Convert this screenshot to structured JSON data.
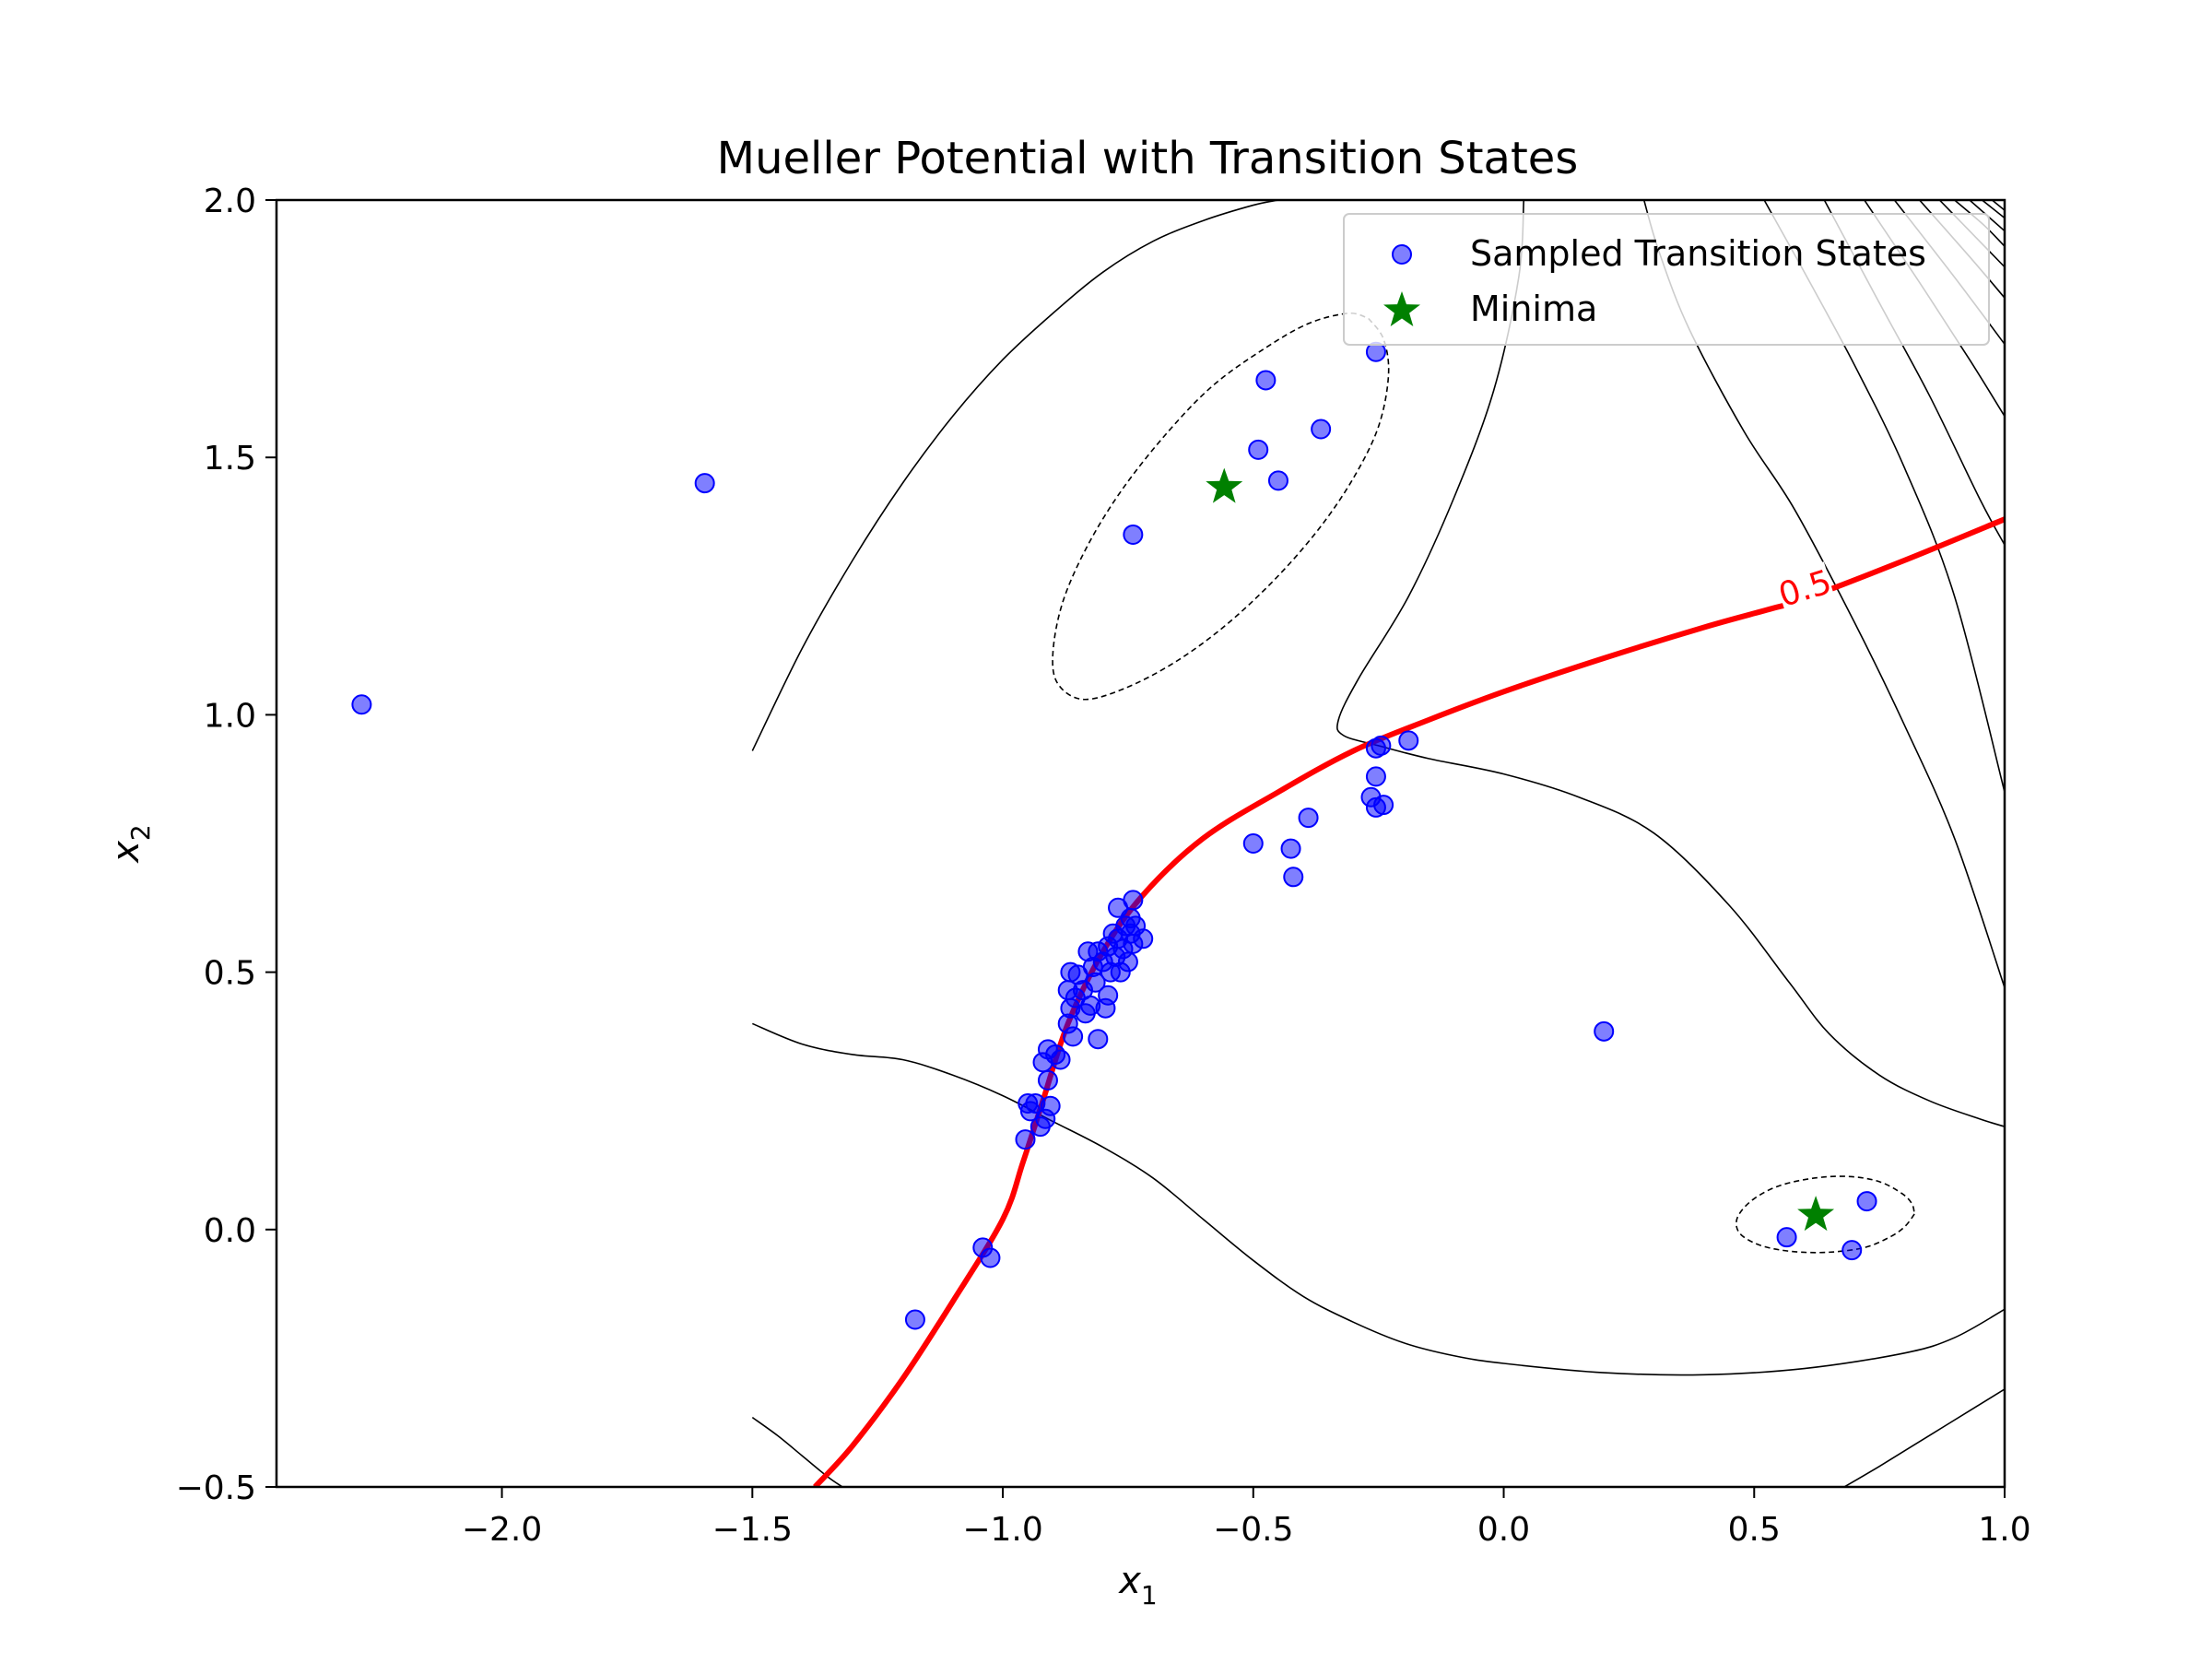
{
  "chart_data": {
    "type": "scatter",
    "title": "Mueller Potential with Transition States",
    "xlabel": "x",
    "xlabel_sub": "1",
    "ylabel": "x",
    "ylabel_sub": "2",
    "xlim": [
      -2.45,
      1.0
    ],
    "ylim": [
      -0.5,
      2.0
    ],
    "xticks": [
      -2.0,
      -1.5,
      -1.0,
      -0.5,
      0.0,
      0.5,
      1.0
    ],
    "xtick_labels": [
      "−2.0",
      "−1.5",
      "−1.0",
      "−0.5",
      "0.0",
      "0.5",
      "1.0"
    ],
    "yticks": [
      -0.5,
      0.0,
      0.5,
      1.0,
      1.5,
      2.0
    ],
    "ytick_labels": [
      "−0.5",
      "0.0",
      "0.5",
      "1.0",
      "1.5",
      "2.0"
    ],
    "legend_position": "upper right",
    "legend": [
      {
        "label": "Sampled Transition States",
        "marker": "circle",
        "color": "#0000ff"
      },
      {
        "label": "Minima",
        "marker": "star",
        "color": "#008000"
      }
    ],
    "contour_label": "0.5",
    "contour_label_color": "#ff0000",
    "colors": {
      "points": "#0000ff",
      "minima": "#008000",
      "committor": "#ff0000",
      "contours": "#000000"
    },
    "minima": [
      {
        "x": -0.558,
        "y": 1.442
      },
      {
        "x": 0.623,
        "y": 0.028
      }
    ],
    "transition_states": [
      {
        "x": -2.28,
        "y": 1.02
      },
      {
        "x": -1.595,
        "y": 1.45
      },
      {
        "x": -0.74,
        "y": 1.35
      },
      {
        "x": -0.49,
        "y": 1.515
      },
      {
        "x": -0.475,
        "y": 1.65
      },
      {
        "x": -0.45,
        "y": 1.455
      },
      {
        "x": -0.365,
        "y": 1.555
      },
      {
        "x": -0.255,
        "y": 1.705
      },
      {
        "x": -0.255,
        "y": 0.935
      },
      {
        "x": -0.245,
        "y": 0.94
      },
      {
        "x": -0.19,
        "y": 0.95
      },
      {
        "x": -0.255,
        "y": 0.88
      },
      {
        "x": -0.265,
        "y": 0.84
      },
      {
        "x": -0.24,
        "y": 0.825
      },
      {
        "x": -0.255,
        "y": 0.82
      },
      {
        "x": -0.39,
        "y": 0.8
      },
      {
        "x": -0.5,
        "y": 0.75
      },
      {
        "x": -0.425,
        "y": 0.74
      },
      {
        "x": -0.42,
        "y": 0.685
      },
      {
        "x": 0.2,
        "y": 0.385
      },
      {
        "x": 0.725,
        "y": 0.055
      },
      {
        "x": 0.565,
        "y": -0.015
      },
      {
        "x": 0.695,
        "y": -0.04
      },
      {
        "x": -1.04,
        "y": -0.035
      },
      {
        "x": -1.025,
        "y": -0.055
      },
      {
        "x": -1.175,
        "y": -0.175
      },
      {
        "x": -0.955,
        "y": 0.175
      },
      {
        "x": -0.95,
        "y": 0.245
      },
      {
        "x": -0.945,
        "y": 0.23
      },
      {
        "x": -0.935,
        "y": 0.245
      },
      {
        "x": -0.925,
        "y": 0.2
      },
      {
        "x": -0.915,
        "y": 0.215
      },
      {
        "x": -0.905,
        "y": 0.24
      },
      {
        "x": -0.91,
        "y": 0.29
      },
      {
        "x": -0.92,
        "y": 0.325
      },
      {
        "x": -0.91,
        "y": 0.35
      },
      {
        "x": -0.895,
        "y": 0.34
      },
      {
        "x": -0.885,
        "y": 0.33
      },
      {
        "x": -0.87,
        "y": 0.4
      },
      {
        "x": -0.86,
        "y": 0.375
      },
      {
        "x": -0.865,
        "y": 0.43
      },
      {
        "x": -0.87,
        "y": 0.465
      },
      {
        "x": -0.865,
        "y": 0.5
      },
      {
        "x": -0.855,
        "y": 0.45
      },
      {
        "x": -0.85,
        "y": 0.495
      },
      {
        "x": -0.84,
        "y": 0.465
      },
      {
        "x": -0.835,
        "y": 0.42
      },
      {
        "x": -0.83,
        "y": 0.54
      },
      {
        "x": -0.825,
        "y": 0.435
      },
      {
        "x": -0.82,
        "y": 0.51
      },
      {
        "x": -0.815,
        "y": 0.48
      },
      {
        "x": -0.81,
        "y": 0.54
      },
      {
        "x": -0.81,
        "y": 0.37
      },
      {
        "x": -0.8,
        "y": 0.52
      },
      {
        "x": -0.795,
        "y": 0.43
      },
      {
        "x": -0.79,
        "y": 0.455
      },
      {
        "x": -0.79,
        "y": 0.55
      },
      {
        "x": -0.785,
        "y": 0.5
      },
      {
        "x": -0.78,
        "y": 0.575
      },
      {
        "x": -0.775,
        "y": 0.53
      },
      {
        "x": -0.77,
        "y": 0.565
      },
      {
        "x": -0.77,
        "y": 0.625
      },
      {
        "x": -0.765,
        "y": 0.5
      },
      {
        "x": -0.76,
        "y": 0.545
      },
      {
        "x": -0.755,
        "y": 0.59
      },
      {
        "x": -0.75,
        "y": 0.52
      },
      {
        "x": -0.745,
        "y": 0.605
      },
      {
        "x": -0.745,
        "y": 0.575
      },
      {
        "x": -0.74,
        "y": 0.64
      },
      {
        "x": -0.74,
        "y": 0.555
      },
      {
        "x": -0.735,
        "y": 0.59
      },
      {
        "x": -0.72,
        "y": 0.565
      }
    ],
    "committor_curve": [
      {
        "x": -1.375,
        "y": -0.5
      },
      {
        "x": -1.3,
        "y": -0.42
      },
      {
        "x": -1.2,
        "y": -0.29
      },
      {
        "x": -1.1,
        "y": -0.14
      },
      {
        "x": -1.0,
        "y": 0.02
      },
      {
        "x": -0.96,
        "y": 0.13
      },
      {
        "x": -0.92,
        "y": 0.25
      },
      {
        "x": -0.87,
        "y": 0.4
      },
      {
        "x": -0.8,
        "y": 0.54
      },
      {
        "x": -0.72,
        "y": 0.65
      },
      {
        "x": -0.6,
        "y": 0.76
      },
      {
        "x": -0.45,
        "y": 0.85
      },
      {
        "x": -0.3,
        "y": 0.93
      },
      {
        "x": -0.15,
        "y": 0.99
      },
      {
        "x": 0.0,
        "y": 1.045
      },
      {
        "x": 0.2,
        "y": 1.11
      },
      {
        "x": 0.4,
        "y": 1.17
      },
      {
        "x": 0.53,
        "y": 1.205
      },
      {
        "x": 0.6,
        "y": 1.225
      },
      {
        "x": 0.8,
        "y": 1.3
      },
      {
        "x": 1.0,
        "y": 1.38
      }
    ],
    "dashed_contours": [
      [
        {
          "x": -0.27,
          "y": 1.77
        },
        {
          "x": -0.24,
          "y": 1.73
        },
        {
          "x": -0.23,
          "y": 1.66
        },
        {
          "x": -0.25,
          "y": 1.56
        },
        {
          "x": -0.3,
          "y": 1.46
        },
        {
          "x": -0.37,
          "y": 1.36
        },
        {
          "x": -0.46,
          "y": 1.26
        },
        {
          "x": -0.56,
          "y": 1.17
        },
        {
          "x": -0.66,
          "y": 1.1
        },
        {
          "x": -0.76,
          "y": 1.05
        },
        {
          "x": -0.84,
          "y": 1.03
        },
        {
          "x": -0.89,
          "y": 1.06
        },
        {
          "x": -0.9,
          "y": 1.12
        },
        {
          "x": -0.88,
          "y": 1.22
        },
        {
          "x": -0.83,
          "y": 1.33
        },
        {
          "x": -0.76,
          "y": 1.44
        },
        {
          "x": -0.67,
          "y": 1.55
        },
        {
          "x": -0.58,
          "y": 1.64
        },
        {
          "x": -0.48,
          "y": 1.71
        },
        {
          "x": -0.39,
          "y": 1.76
        },
        {
          "x": -0.31,
          "y": 1.78
        },
        {
          "x": -0.27,
          "y": 1.77
        }
      ],
      [
        {
          "x": 0.82,
          "y": 0.03
        },
        {
          "x": 0.8,
          "y": 0.005
        },
        {
          "x": 0.77,
          "y": -0.015
        },
        {
          "x": 0.72,
          "y": -0.035
        },
        {
          "x": 0.65,
          "y": -0.044
        },
        {
          "x": 0.58,
          "y": -0.043
        },
        {
          "x": 0.52,
          "y": -0.033
        },
        {
          "x": 0.48,
          "y": -0.015
        },
        {
          "x": 0.465,
          "y": 0.005
        },
        {
          "x": 0.47,
          "y": 0.03
        },
        {
          "x": 0.5,
          "y": 0.06
        },
        {
          "x": 0.55,
          "y": 0.085
        },
        {
          "x": 0.62,
          "y": 0.1
        },
        {
          "x": 0.69,
          "y": 0.103
        },
        {
          "x": 0.75,
          "y": 0.093
        },
        {
          "x": 0.795,
          "y": 0.07
        },
        {
          "x": 0.815,
          "y": 0.05
        },
        {
          "x": 0.82,
          "y": 0.03
        }
      ]
    ],
    "solid_contours": [
      [
        {
          "x": -1.5,
          "y": 0.93
        },
        {
          "x": -1.4,
          "y": 1.13
        },
        {
          "x": -1.3,
          "y": 1.3
        },
        {
          "x": -1.2,
          "y": 1.45
        },
        {
          "x": -1.1,
          "y": 1.58
        },
        {
          "x": -1.0,
          "y": 1.69
        },
        {
          "x": -0.9,
          "y": 1.78
        },
        {
          "x": -0.8,
          "y": 1.86
        },
        {
          "x": -0.7,
          "y": 1.92
        },
        {
          "x": -0.6,
          "y": 1.96
        },
        {
          "x": -0.5,
          "y": 1.99
        },
        {
          "x": -0.45,
          "y": 2.0
        }
      ],
      [
        {
          "x": 0.04,
          "y": 2.0
        },
        {
          "x": 0.03,
          "y": 1.85
        },
        {
          "x": -0.02,
          "y": 1.63
        },
        {
          "x": -0.1,
          "y": 1.42
        },
        {
          "x": -0.19,
          "y": 1.23
        },
        {
          "x": -0.29,
          "y": 1.07
        },
        {
          "x": -0.33,
          "y": 0.99
        },
        {
          "x": -0.32,
          "y": 0.96
        },
        {
          "x": -0.25,
          "y": 0.94
        },
        {
          "x": -0.15,
          "y": 0.915
        },
        {
          "x": 0.0,
          "y": 0.885
        },
        {
          "x": 0.15,
          "y": 0.84
        },
        {
          "x": 0.3,
          "y": 0.77
        },
        {
          "x": 0.45,
          "y": 0.63
        },
        {
          "x": 0.57,
          "y": 0.48
        },
        {
          "x": 0.65,
          "y": 0.38
        },
        {
          "x": 0.75,
          "y": 0.3
        },
        {
          "x": 0.85,
          "y": 0.25
        },
        {
          "x": 0.95,
          "y": 0.215
        },
        {
          "x": 1.0,
          "y": 0.2
        }
      ],
      [
        {
          "x": -1.5,
          "y": 0.4
        },
        {
          "x": -1.4,
          "y": 0.36
        },
        {
          "x": -1.3,
          "y": 0.34
        },
        {
          "x": -1.2,
          "y": 0.33
        },
        {
          "x": -1.1,
          "y": 0.3
        },
        {
          "x": -1.0,
          "y": 0.26
        },
        {
          "x": -0.9,
          "y": 0.21
        },
        {
          "x": -0.8,
          "y": 0.16
        },
        {
          "x": -0.7,
          "y": 0.1
        },
        {
          "x": -0.6,
          "y": 0.02
        },
        {
          "x": -0.5,
          "y": -0.06
        },
        {
          "x": -0.4,
          "y": -0.13
        },
        {
          "x": -0.3,
          "y": -0.18
        },
        {
          "x": -0.2,
          "y": -0.22
        },
        {
          "x": -0.1,
          "y": -0.245
        },
        {
          "x": 0.0,
          "y": -0.26
        },
        {
          "x": 0.2,
          "y": -0.278
        },
        {
          "x": 0.4,
          "y": -0.282
        },
        {
          "x": 0.6,
          "y": -0.27
        },
        {
          "x": 0.8,
          "y": -0.24
        },
        {
          "x": 0.9,
          "y": -0.21
        },
        {
          "x": 1.0,
          "y": -0.155
        }
      ],
      [
        {
          "x": -1.5,
          "y": -0.365
        },
        {
          "x": -1.45,
          "y": -0.4
        },
        {
          "x": -1.4,
          "y": -0.44
        },
        {
          "x": -1.35,
          "y": -0.48
        },
        {
          "x": -1.32,
          "y": -0.5
        }
      ],
      [
        {
          "x": 0.68,
          "y": -0.5
        },
        {
          "x": 0.75,
          "y": -0.46
        },
        {
          "x": 0.85,
          "y": -0.4
        },
        {
          "x": 0.95,
          "y": -0.34
        },
        {
          "x": 1.0,
          "y": -0.31
        }
      ],
      [
        {
          "x": 0.28,
          "y": 2.0
        },
        {
          "x": 0.31,
          "y": 1.9
        },
        {
          "x": 0.37,
          "y": 1.75
        },
        {
          "x": 0.48,
          "y": 1.55
        },
        {
          "x": 0.58,
          "y": 1.4
        },
        {
          "x": 0.7,
          "y": 1.18
        },
        {
          "x": 0.8,
          "y": 0.98
        },
        {
          "x": 0.9,
          "y": 0.76
        },
        {
          "x": 1.0,
          "y": 0.47
        }
      ],
      [
        {
          "x": 0.52,
          "y": 2.0
        },
        {
          "x": 0.6,
          "y": 1.86
        },
        {
          "x": 0.7,
          "y": 1.68
        },
        {
          "x": 0.8,
          "y": 1.48
        },
        {
          "x": 0.9,
          "y": 1.23
        },
        {
          "x": 1.0,
          "y": 0.85
        }
      ],
      [
        {
          "x": 0.64,
          "y": 2.0
        },
        {
          "x": 0.75,
          "y": 1.8
        },
        {
          "x": 0.85,
          "y": 1.62
        },
        {
          "x": 0.95,
          "y": 1.42
        },
        {
          "x": 1.0,
          "y": 1.33
        }
      ],
      [
        {
          "x": 0.72,
          "y": 2.0
        },
        {
          "x": 0.83,
          "y": 1.84
        },
        {
          "x": 0.93,
          "y": 1.69
        },
        {
          "x": 1.0,
          "y": 1.58
        }
      ],
      [
        {
          "x": 0.78,
          "y": 2.0
        },
        {
          "x": 0.9,
          "y": 1.85
        },
        {
          "x": 1.0,
          "y": 1.72
        }
      ],
      [
        {
          "x": 0.83,
          "y": 2.0
        },
        {
          "x": 0.93,
          "y": 1.89
        },
        {
          "x": 1.0,
          "y": 1.81
        }
      ],
      [
        {
          "x": 0.87,
          "y": 2.0
        },
        {
          "x": 0.95,
          "y": 1.92
        },
        {
          "x": 1.0,
          "y": 1.87
        }
      ],
      [
        {
          "x": 0.9,
          "y": 2.0
        },
        {
          "x": 0.96,
          "y": 1.95
        },
        {
          "x": 1.0,
          "y": 1.91
        }
      ],
      [
        {
          "x": 0.93,
          "y": 2.0
        },
        {
          "x": 1.0,
          "y": 1.94
        }
      ],
      [
        {
          "x": 0.955,
          "y": 2.0
        },
        {
          "x": 1.0,
          "y": 1.965
        }
      ],
      [
        {
          "x": 0.975,
          "y": 2.0
        },
        {
          "x": 1.0,
          "y": 1.98
        }
      ]
    ]
  }
}
